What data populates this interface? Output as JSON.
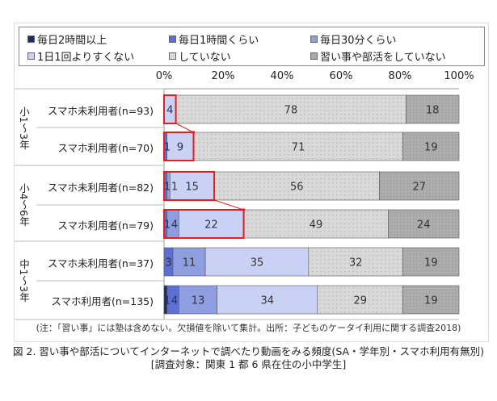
{
  "chart_data": {
    "type": "bar",
    "orientation": "horizontal-stacked-100",
    "legend": [
      "毎日2時間以上",
      "毎日1時間くらい",
      "毎日30分くらい",
      "1日1回よりすくない",
      "していない",
      "習い事や部活をしていない"
    ],
    "colors": [
      "#1f2a6e",
      "#5b6fd6",
      "#8e9ee0",
      "#c9d1f5",
      "#d9d9d9",
      "#a9a9a9"
    ],
    "xticks": [
      "0%",
      "20%",
      "40%",
      "60%",
      "80%",
      "100%"
    ],
    "xlim": [
      0,
      100
    ],
    "groups": [
      {
        "label": "小1～3年",
        "rows": [
          {
            "label": "スマホ未利用者(n=93)",
            "values": [
              0,
              0,
              0,
              4,
              78,
              18
            ],
            "highlight": [
              3,
              3
            ]
          },
          {
            "label": "スマホ利用者(n=70)",
            "values": [
              0,
              1,
              0,
              9,
              71,
              19
            ],
            "highlight": [
              0,
              3
            ]
          }
        ]
      },
      {
        "label": "小4～6年",
        "rows": [
          {
            "label": "スマホ未利用者(n=82)",
            "values": [
              0,
              1,
              1,
              15,
              56,
              27
            ],
            "highlight": [
              0,
              3
            ]
          },
          {
            "label": "スマホ利用者(n=79)",
            "values": [
              0,
              1,
              4,
              22,
              49,
              24
            ],
            "highlight": [
              0,
              3
            ]
          }
        ]
      },
      {
        "label": "中1～3年",
        "rows": [
          {
            "label": "スマホ未利用者(n=37)",
            "values": [
              0,
              3,
              11,
              35,
              32,
              19
            ]
          },
          {
            "label": "スマホ利用者(n=135)",
            "values": [
              1,
              4,
              13,
              34,
              29,
              19
            ]
          }
        ]
      }
    ],
    "highlight_color": "#e02020"
  },
  "note": "(注：「習い事」には塾は含めない。欠損値を除いて集計。出所：子どものケータイ利用に関する調査2018)",
  "caption": {
    "line1": "図 2. 習い事や部活についてインターネットで調べたり動画をみる頻度(SA・学年別・スマホ利用有無別)",
    "line2": "[調査対象：関東 1 都 6 県在住の小中学生]"
  }
}
